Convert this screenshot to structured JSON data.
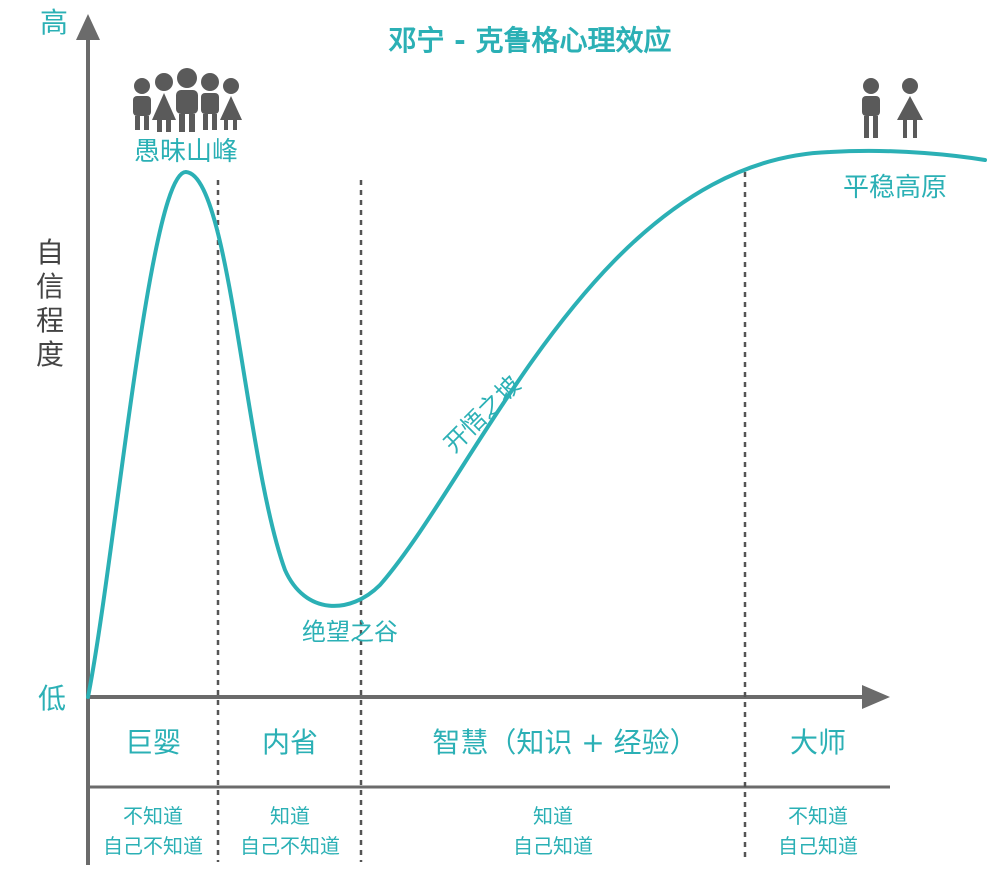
{
  "title": "邓宁 - 克鲁格心理效应",
  "axes": {
    "y_label": "自信程度",
    "y_high": "高",
    "y_low": "低"
  },
  "curve_labels": {
    "peak": "愚昧山峰",
    "valley": "绝望之谷",
    "slope": "开悟之坡",
    "plateau": "平稳高原"
  },
  "stages": [
    {
      "name": "巨婴",
      "line1": "不知道",
      "line2": "自己不知道"
    },
    {
      "name": "内省",
      "line1": "知道",
      "line2": "自己不知道"
    },
    {
      "name": "智慧（知识 + 经验）",
      "line1": "知道",
      "line2": "自己知道"
    },
    {
      "name": "大师",
      "line1": "不知道",
      "line2": "自己知道"
    }
  ],
  "icons": {
    "crowd": "people-group-icon",
    "pair": "couple-icon"
  },
  "colors": {
    "accent": "#2bb0b5",
    "axis": "#6b6b6b",
    "divider": "#555555",
    "icon": "#5a5a5a"
  }
}
